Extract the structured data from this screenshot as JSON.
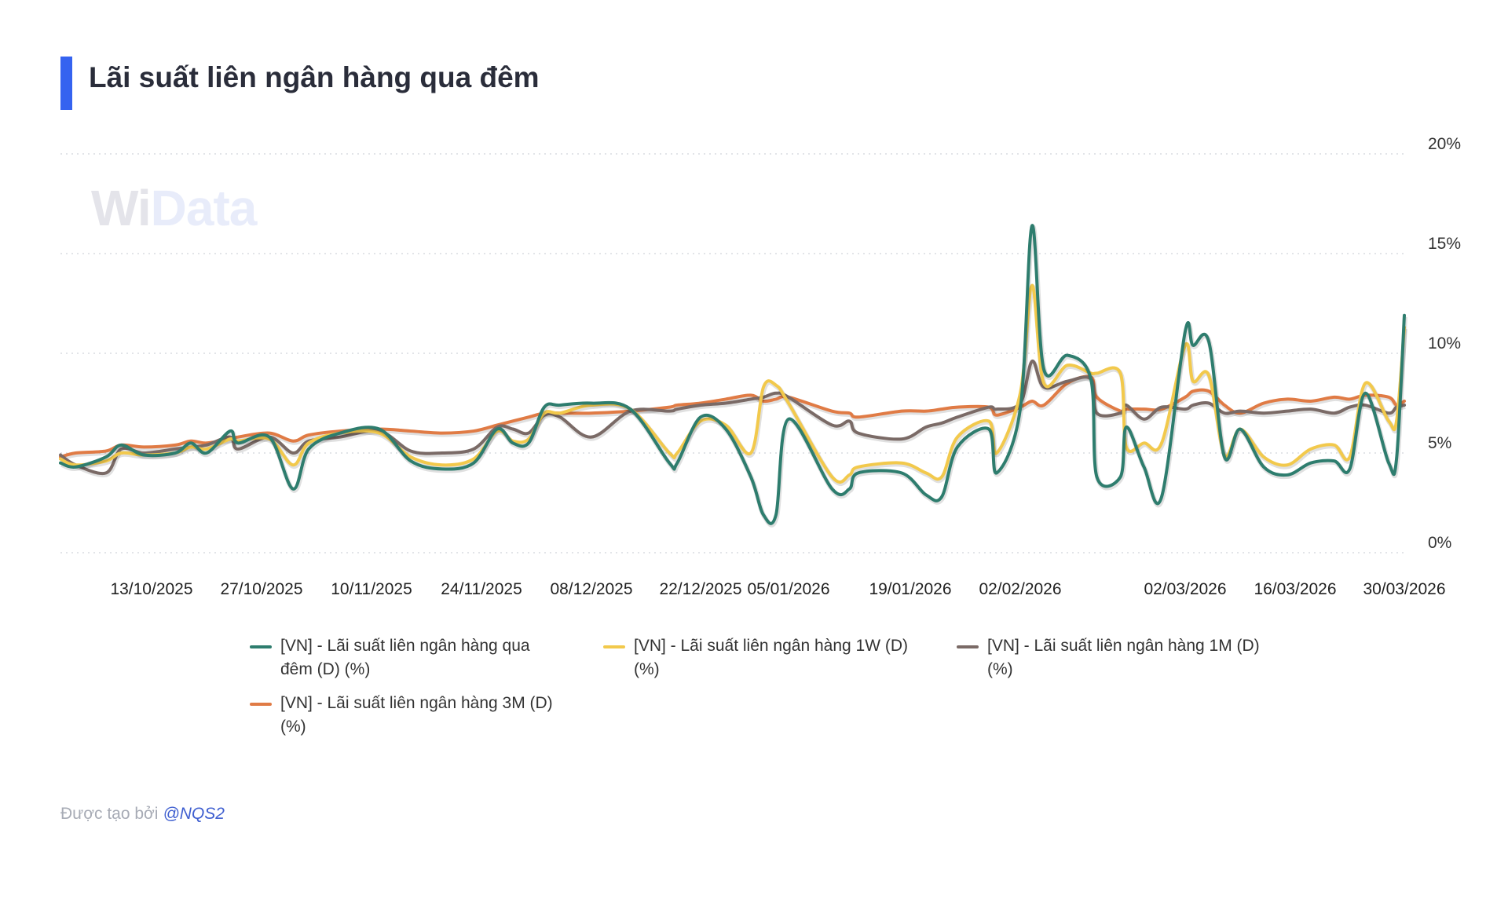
{
  "title": "Lãi suất liên ngân hàng qua đêm",
  "watermark": "WiData",
  "footer": {
    "label": "Được tạo bởi",
    "author": "@NQS2"
  },
  "chart_data": {
    "type": "line",
    "title": "Lãi suất liên ngân hàng qua đêm",
    "xlabel": "",
    "ylabel": "",
    "ylim": [
      0,
      20
    ],
    "y_ticks": [
      "0%",
      "5%",
      "10%",
      "15%",
      "20%"
    ],
    "y_tick_values": [
      0,
      5,
      10,
      15,
      20
    ],
    "y_axis_position": "right",
    "grid": "horizontal dotted",
    "legend_position": "bottom",
    "x_ticks": [
      "13/10/2025",
      "27/10/2025",
      "10/11/2025",
      "24/11/2025",
      "08/12/2025",
      "22/12/2025",
      "05/01/2026",
      "19/01/2026",
      "02/02/2026",
      "02/03/2026",
      "16/03/2026",
      "30/03/2026"
    ],
    "x": [
      "2025-10-01",
      "2025-10-03",
      "2025-10-07",
      "2025-10-09",
      "2025-10-12",
      "2025-10-16",
      "2025-10-18",
      "2025-10-20",
      "2025-10-23",
      "2025-10-24",
      "2025-10-28",
      "2025-10-31",
      "2025-11-02",
      "2025-11-06",
      "2025-11-11",
      "2025-11-15",
      "2025-11-19",
      "2025-11-23",
      "2025-11-26",
      "2025-11-28",
      "2025-11-30",
      "2025-12-02",
      "2025-12-04",
      "2025-12-08",
      "2025-12-13",
      "2025-12-18",
      "2025-12-19",
      "2025-12-22",
      "2025-12-26",
      "2025-12-30",
      "2026-01-01",
      "2026-01-03",
      "2026-01-05",
      "2026-01-10",
      "2026-01-12",
      "2026-01-13",
      "2026-01-18",
      "2026-01-21",
      "2026-01-23",
      "2026-01-25",
      "2026-01-29",
      "2026-01-30",
      "2026-02-02",
      "2026-02-04",
      "2026-02-06",
      "2026-02-10",
      "2026-02-14",
      "2026-02-15",
      "2026-02-19",
      "2026-02-20",
      "2026-02-23",
      "2026-02-26",
      "2026-03-02",
      "2026-03-03",
      "2026-03-05",
      "2026-03-07",
      "2026-03-09",
      "2026-03-12",
      "2026-03-15",
      "2026-03-18",
      "2026-03-21",
      "2026-03-23",
      "2026-03-25",
      "2026-03-28",
      "2026-03-29",
      "2026-03-30"
    ],
    "series": [
      {
        "name": "[VN] - Lãi suất liên ngân hàng qua đêm (D) (%)",
        "color": "#2e7d6e",
        "values": [
          4.5,
          4.3,
          4.8,
          5.4,
          4.9,
          5.0,
          5.5,
          5.0,
          6.1,
          5.5,
          5.8,
          3.2,
          5.2,
          6.0,
          6.2,
          4.6,
          4.2,
          4.5,
          6.2,
          5.5,
          5.5,
          7.3,
          7.4,
          7.5,
          7.2,
          4.5,
          4.5,
          6.8,
          6.2,
          3.8,
          1.9,
          1.9,
          6.7,
          3.2,
          3.2,
          4.0,
          4.0,
          2.9,
          2.8,
          5.3,
          6.2,
          4.0,
          7.2,
          16.4,
          9.2,
          9.9,
          8.7,
          3.8,
          3.8,
          6.3,
          4.3,
          2.8,
          11.1,
          10.4,
          10.6,
          4.8,
          6.2,
          4.3,
          3.9,
          4.5,
          4.6,
          4.2,
          8.0,
          4.5,
          4.7,
          11.9
        ]
      },
      {
        "name": "[VN] - Lãi suất liên ngân hàng 1W (D) (%)",
        "color": "#f2c94c",
        "values": [
          4.7,
          4.4,
          4.6,
          5.0,
          4.9,
          5.0,
          5.3,
          5.2,
          5.7,
          5.6,
          5.7,
          4.4,
          5.5,
          6.0,
          6.0,
          4.8,
          4.4,
          4.7,
          6.1,
          5.6,
          5.7,
          7.0,
          7.0,
          7.4,
          7.2,
          5.0,
          5.0,
          6.6,
          6.4,
          5.0,
          8.3,
          8.4,
          7.5,
          3.8,
          3.9,
          4.3,
          4.5,
          4.0,
          3.8,
          5.8,
          6.6,
          5.0,
          8.0,
          13.4,
          8.5,
          9.4,
          9.0,
          9.0,
          9.0,
          5.3,
          5.5,
          5.5,
          10.4,
          8.6,
          8.9,
          4.9,
          6.2,
          4.8,
          4.4,
          5.2,
          5.4,
          4.8,
          8.5,
          6.6,
          6.6,
          11.3
        ]
      },
      {
        "name": "[VN] - Lãi suất liên ngân hàng 1M (D) (%)",
        "color": "#7a6a66",
        "values": [
          4.9,
          4.4,
          4.0,
          5.2,
          5.0,
          5.2,
          5.3,
          5.4,
          5.8,
          5.2,
          5.8,
          5.0,
          5.6,
          5.8,
          6.1,
          5.1,
          5.0,
          5.2,
          6.3,
          6.2,
          6.0,
          6.9,
          6.8,
          5.8,
          7.1,
          7.1,
          7.2,
          7.4,
          7.5,
          7.7,
          7.8,
          8.0,
          7.8,
          6.4,
          6.6,
          6.0,
          5.7,
          6.3,
          6.5,
          6.8,
          7.3,
          7.2,
          7.5,
          9.6,
          8.3,
          8.6,
          8.7,
          7.0,
          7.0,
          7.4,
          6.7,
          7.3,
          7.2,
          7.4,
          7.5,
          7.0,
          7.1,
          7.0,
          7.1,
          7.2,
          7.0,
          7.3,
          7.4,
          7.0,
          7.3,
          7.4
        ]
      },
      {
        "name": "[VN] - Lãi suất liên ngân hàng 3M (D) (%)",
        "color": "#e07b45",
        "values": [
          4.8,
          5.0,
          5.1,
          5.4,
          5.3,
          5.4,
          5.6,
          5.5,
          5.7,
          5.8,
          6.0,
          5.6,
          5.9,
          6.1,
          6.2,
          6.1,
          6.0,
          6.1,
          6.4,
          6.6,
          6.8,
          7.0,
          7.0,
          7.0,
          7.1,
          7.3,
          7.4,
          7.5,
          7.7,
          7.9,
          7.6,
          7.7,
          7.8,
          7.1,
          7.0,
          6.8,
          7.1,
          7.1,
          7.2,
          7.3,
          7.3,
          6.9,
          7.3,
          7.6,
          7.4,
          8.5,
          8.8,
          7.8,
          7.1,
          7.2,
          7.2,
          7.2,
          7.8,
          8.1,
          8.1,
          7.4,
          7.0,
          7.5,
          7.7,
          7.6,
          7.8,
          7.7,
          7.9,
          7.8,
          7.4,
          7.6
        ]
      }
    ]
  }
}
